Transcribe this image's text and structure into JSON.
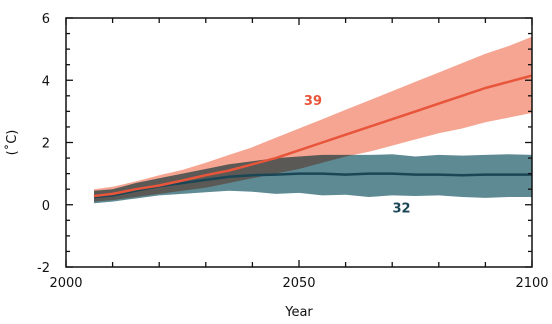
{
  "chart_data": {
    "type": "line",
    "xlabel": "Year",
    "ylabel": "(˚C)",
    "xlim": [
      2000,
      2100
    ],
    "ylim": [
      -2,
      6
    ],
    "xticks": [
      2000,
      2050,
      2100
    ],
    "yticks": [
      -2,
      0,
      2,
      4,
      6
    ],
    "grid": false,
    "series": [
      {
        "name": "32",
        "color": "#1b4656",
        "band_color": "#5e8a94",
        "x": [
          2006,
          2010,
          2015,
          2020,
          2025,
          2030,
          2035,
          2040,
          2045,
          2050,
          2055,
          2060,
          2065,
          2070,
          2075,
          2080,
          2085,
          2090,
          2095,
          2100
        ],
        "y": [
          0.25,
          0.3,
          0.45,
          0.6,
          0.7,
          0.8,
          0.9,
          0.95,
          0.97,
          1.0,
          1.0,
          0.97,
          1.0,
          1.0,
          0.97,
          0.97,
          0.95,
          0.97,
          0.97,
          0.97
        ],
        "lower": [
          0.05,
          0.1,
          0.2,
          0.3,
          0.35,
          0.4,
          0.45,
          0.42,
          0.35,
          0.38,
          0.3,
          0.32,
          0.25,
          0.3,
          0.28,
          0.3,
          0.25,
          0.22,
          0.25,
          0.25
        ],
        "upper": [
          0.45,
          0.5,
          0.7,
          0.85,
          1.0,
          1.15,
          1.3,
          1.4,
          1.5,
          1.55,
          1.6,
          1.6,
          1.6,
          1.62,
          1.55,
          1.6,
          1.58,
          1.6,
          1.62,
          1.6
        ]
      },
      {
        "name": "39",
        "color": "#e8553a",
        "band_color": "#f5a592",
        "x": [
          2006,
          2010,
          2015,
          2020,
          2025,
          2030,
          2035,
          2040,
          2045,
          2050,
          2055,
          2060,
          2065,
          2070,
          2075,
          2080,
          2085,
          2090,
          2095,
          2100
        ],
        "y": [
          0.28,
          0.35,
          0.5,
          0.62,
          0.78,
          0.95,
          1.1,
          1.3,
          1.5,
          1.75,
          2.0,
          2.25,
          2.5,
          2.75,
          3.0,
          3.25,
          3.5,
          3.75,
          3.95,
          4.15
        ],
        "lower": [
          0.1,
          0.15,
          0.25,
          0.35,
          0.45,
          0.55,
          0.7,
          0.85,
          1.0,
          1.15,
          1.35,
          1.55,
          1.7,
          1.9,
          2.1,
          2.3,
          2.45,
          2.65,
          2.8,
          2.95
        ],
        "upper": [
          0.5,
          0.58,
          0.75,
          0.95,
          1.12,
          1.35,
          1.6,
          1.85,
          2.15,
          2.45,
          2.75,
          3.05,
          3.35,
          3.65,
          3.95,
          4.25,
          4.55,
          4.85,
          5.1,
          5.4
        ]
      }
    ]
  }
}
